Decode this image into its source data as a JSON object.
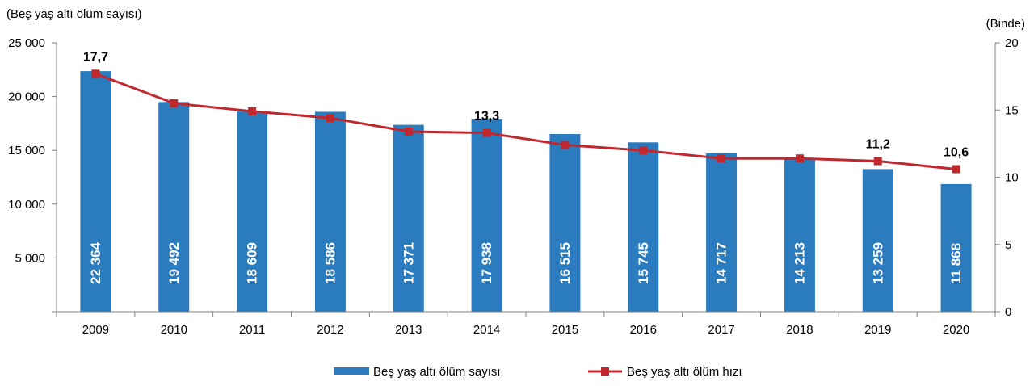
{
  "chart_data": {
    "type": "bar",
    "categories": [
      "2009",
      "2010",
      "2011",
      "2012",
      "2013",
      "2014",
      "2015",
      "2016",
      "2017",
      "2018",
      "2019",
      "2020"
    ],
    "series": [
      {
        "name": "Beş yaş altı ölüm sayısı",
        "type": "bar",
        "axis": "left",
        "color": "#2b7bbf",
        "values": [
          22364,
          19492,
          18609,
          18586,
          17371,
          17938,
          16515,
          15745,
          14717,
          14213,
          13259,
          11868
        ],
        "labels": [
          "22 364",
          "19 492",
          "18 609",
          "18 586",
          "17 371",
          "17 938",
          "16 515",
          "15 745",
          "14 717",
          "14 213",
          "13 259",
          "11 868"
        ]
      },
      {
        "name": "Beş yaş altı ölüm hızı",
        "type": "line",
        "axis": "right",
        "color": "#c0282d",
        "values": [
          17.7,
          15.5,
          14.9,
          14.4,
          13.4,
          13.3,
          12.4,
          12.0,
          11.4,
          11.4,
          11.2,
          10.6
        ],
        "labels": [
          "17,7",
          "",
          "",
          "",
          "",
          "13,3",
          "",
          "",
          "",
          "",
          "11,2",
          "10,6"
        ]
      }
    ],
    "ylabel": "(Beş yaş altı ölüm sayısı)",
    "y2label": "(Binde)",
    "ylim": [
      0,
      25000
    ],
    "y2lim": [
      0,
      20
    ],
    "yticks": [
      "25 000",
      "20 000",
      "15 000",
      "10 000",
      "5 000",
      ""
    ],
    "y2ticks": [
      "20",
      "15",
      "10",
      "5",
      "0"
    ],
    "grid": false,
    "legend": "bottom-center"
  }
}
